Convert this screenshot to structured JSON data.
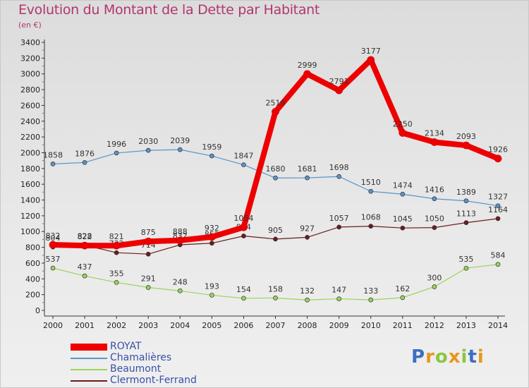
{
  "header": {
    "title": "Evolution du Montant de la Dette par Habitant",
    "unit": "(en €)"
  },
  "logo": {
    "text": "Proxiti"
  },
  "colors": {
    "title": "#b2356f",
    "legend_text": "#3a4fa8",
    "ROYAT": "#ee0000",
    "Chamalières": "#5b93c7",
    "Beaumont": "#99d45a",
    "Clermont-Ferrand": "#6b1c1c"
  },
  "chart_data": {
    "type": "line",
    "title": "Evolution du Montant de la Dette par Habitant",
    "subtitle": "(en €)",
    "xlabel": "",
    "ylabel": "",
    "x": [
      "2000",
      "2001",
      "2002",
      "2003",
      "2004",
      "2005",
      "2006",
      "2007",
      "2008",
      "2009",
      "2010",
      "2011",
      "2012",
      "2013",
      "2014"
    ],
    "ylim": [
      0,
      3400
    ],
    "yticks": [
      0,
      200,
      400,
      600,
      800,
      1000,
      1200,
      1400,
      1600,
      1800,
      2000,
      2200,
      2400,
      2600,
      2800,
      3000,
      3200,
      3400
    ],
    "grid": false,
    "legend_position": "bottom-left",
    "series": [
      {
        "name": "ROYAT",
        "color": "#ee0000",
        "width": 8,
        "values": [
          832,
          822,
          821,
          875,
          888,
          932,
          1054,
          2519,
          2999,
          2791,
          3177,
          2250,
          2134,
          2093,
          1926
        ]
      },
      {
        "name": "Chamalières",
        "color": "#5b93c7",
        "width": 1.2,
        "values": [
          1858,
          1876,
          1996,
          2030,
          2039,
          1959,
          1847,
          1680,
          1681,
          1698,
          1510,
          1474,
          1416,
          1389,
          1327
        ]
      },
      {
        "name": "Beaumont",
        "color": "#99d45a",
        "width": 1.2,
        "values": [
          537,
          437,
          355,
          291,
          248,
          193,
          154,
          158,
          132,
          147,
          133,
          162,
          300,
          535,
          584
        ]
      },
      {
        "name": "Clermont-Ferrand",
        "color": "#6b1c1c",
        "width": 1.2,
        "values": [
          804,
          828,
          732,
          714,
          832,
          852,
          944,
          905,
          927,
          1057,
          1068,
          1045,
          1050,
          1113,
          1164
        ]
      }
    ]
  }
}
